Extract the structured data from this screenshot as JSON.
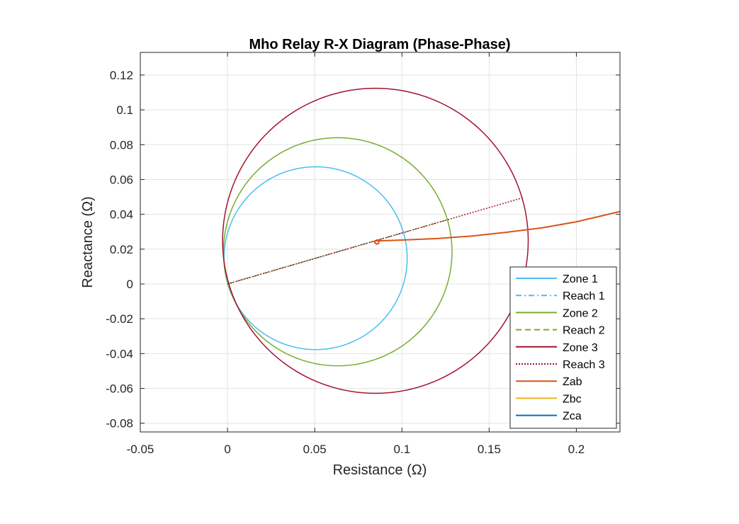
{
  "chart_data": {
    "type": "line",
    "title": "Mho Relay R-X Diagram (Phase-Phase)",
    "xlabel": "Resistance (Ω)",
    "ylabel": "Reactance (Ω)",
    "xlim": [
      -0.05,
      0.225
    ],
    "ylim": [
      -0.085,
      0.133
    ],
    "xticks": [
      -0.05,
      0,
      0.05,
      0.1,
      0.15,
      0.2
    ],
    "xtick_labels": [
      "-0.05",
      "0",
      "0.05",
      "0.1",
      "0.15",
      "0.2"
    ],
    "yticks": [
      -0.08,
      -0.06,
      -0.04,
      -0.02,
      0,
      0.02,
      0.04,
      0.06,
      0.08,
      0.1,
      0.12
    ],
    "ytick_labels": [
      "-0.08",
      "-0.06",
      "-0.04",
      "-0.02",
      "0",
      "0.02",
      "0.04",
      "0.06",
      "0.08",
      "0.1",
      "0.12"
    ],
    "grid": true,
    "legend_position": "bottom-right",
    "series": [
      {
        "name": "Zone 1",
        "kind": "circle",
        "center": [
          0.0505,
          0.0148
        ],
        "radius": 0.0525,
        "color": "#4DBEEE",
        "dash": "solid"
      },
      {
        "name": "Reach 1",
        "kind": "segment",
        "x": [
          0,
          0.101
        ],
        "y": [
          0,
          0.0296
        ],
        "color": "#4DBEEE",
        "dash": "dashdot"
      },
      {
        "name": "Zone 2",
        "kind": "circle",
        "center": [
          0.0632,
          0.0185
        ],
        "radius": 0.0655,
        "color": "#77AC30",
        "dash": "solid"
      },
      {
        "name": "Reach 2",
        "kind": "segment",
        "x": [
          0,
          0.1264
        ],
        "y": [
          0,
          0.037
        ],
        "color": "#77AC30",
        "dash": "dashed"
      },
      {
        "name": "Zone 3",
        "kind": "circle",
        "center": [
          0.0848,
          0.0248
        ],
        "radius": 0.0876,
        "color": "#A2142F",
        "dash": "solid"
      },
      {
        "name": "Reach 3",
        "kind": "segment",
        "x": [
          0,
          0.1696
        ],
        "y": [
          0,
          0.0496
        ],
        "color": "#A2142F",
        "dash": "dotted"
      },
      {
        "name": "Zab",
        "kind": "path",
        "color": "#D95319",
        "dash": "solid",
        "x": [
          0.0843,
          0.0858,
          0.0868,
          0.0866,
          0.0855,
          0.0845,
          0.0843,
          0.0858,
          0.0869,
          0.0885,
          0.1,
          0.12,
          0.14,
          0.16,
          0.18,
          0.2,
          0.225
        ],
        "y": [
          0.0245,
          0.0253,
          0.0245,
          0.0232,
          0.0229,
          0.0236,
          0.0245,
          0.0248,
          0.0248,
          0.0248,
          0.0252,
          0.0261,
          0.0275,
          0.0297,
          0.0322,
          0.0357,
          0.0416
        ]
      },
      {
        "name": "Zbc",
        "kind": "none",
        "color": "#EDB120",
        "dash": "solid"
      },
      {
        "name": "Zca",
        "kind": "none",
        "color": "#0072BD",
        "dash": "solid"
      }
    ]
  }
}
